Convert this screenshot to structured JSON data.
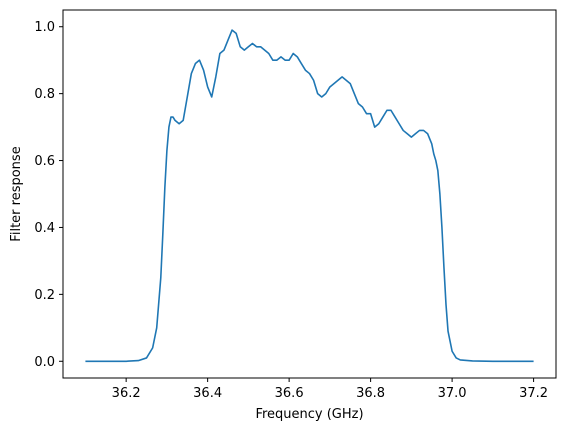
{
  "chart_data": {
    "type": "line",
    "title": "",
    "xlabel": "Frequency (GHz)",
    "ylabel": "Filter response",
    "xlim": [
      36.045,
      37.255
    ],
    "ylim": [
      -0.05,
      1.05
    ],
    "xticks": [
      36.2,
      36.4,
      36.6,
      36.8,
      37.0,
      37.2
    ],
    "xtick_labels": [
      "36.2",
      "36.4",
      "36.6",
      "36.8",
      "37.0",
      "37.2"
    ],
    "yticks": [
      0.0,
      0.2,
      0.4,
      0.6,
      0.8,
      1.0
    ],
    "ytick_labels": [
      "0.0",
      "0.2",
      "0.4",
      "0.6",
      "0.8",
      "1.0"
    ],
    "grid": false,
    "color": "#1f77b4",
    "series": [
      {
        "x": [
          36.1,
          36.15,
          36.2,
          36.23,
          36.25,
          36.265,
          36.275,
          36.285,
          36.29,
          36.295,
          36.3,
          36.305,
          36.31,
          36.315,
          36.32,
          36.33,
          36.34,
          36.35,
          36.36,
          36.37,
          36.38,
          36.39,
          36.4,
          36.41,
          36.42,
          36.43,
          36.44,
          36.45,
          36.46,
          36.47,
          36.48,
          36.49,
          36.5,
          36.51,
          36.52,
          36.53,
          36.54,
          36.55,
          36.56,
          36.57,
          36.58,
          36.59,
          36.6,
          36.61,
          36.62,
          36.63,
          36.64,
          36.65,
          36.66,
          36.67,
          36.68,
          36.69,
          36.7,
          36.71,
          36.72,
          36.73,
          36.74,
          36.75,
          36.76,
          36.77,
          36.78,
          36.79,
          36.8,
          36.81,
          36.82,
          36.83,
          36.84,
          36.85,
          36.86,
          36.87,
          36.88,
          36.89,
          36.9,
          36.91,
          36.92,
          36.93,
          36.94,
          36.95,
          36.955,
          36.96,
          36.965,
          36.97,
          36.975,
          36.98,
          36.985,
          36.99,
          37.0,
          37.01,
          37.02,
          37.05,
          37.1,
          37.2
        ],
        "y": [
          0.0,
          0.0,
          0.0,
          0.002,
          0.01,
          0.04,
          0.1,
          0.25,
          0.38,
          0.52,
          0.63,
          0.7,
          0.73,
          0.73,
          0.72,
          0.71,
          0.72,
          0.79,
          0.86,
          0.89,
          0.9,
          0.87,
          0.82,
          0.79,
          0.85,
          0.92,
          0.93,
          0.96,
          0.99,
          0.98,
          0.94,
          0.93,
          0.94,
          0.95,
          0.94,
          0.94,
          0.93,
          0.92,
          0.9,
          0.9,
          0.91,
          0.9,
          0.9,
          0.92,
          0.91,
          0.89,
          0.87,
          0.86,
          0.84,
          0.8,
          0.79,
          0.8,
          0.82,
          0.83,
          0.84,
          0.85,
          0.84,
          0.83,
          0.8,
          0.77,
          0.76,
          0.74,
          0.74,
          0.7,
          0.71,
          0.73,
          0.75,
          0.75,
          0.73,
          0.71,
          0.69,
          0.68,
          0.67,
          0.68,
          0.69,
          0.69,
          0.68,
          0.65,
          0.62,
          0.6,
          0.57,
          0.5,
          0.4,
          0.28,
          0.17,
          0.09,
          0.03,
          0.01,
          0.004,
          0.001,
          0.0,
          0.0
        ]
      }
    ]
  }
}
